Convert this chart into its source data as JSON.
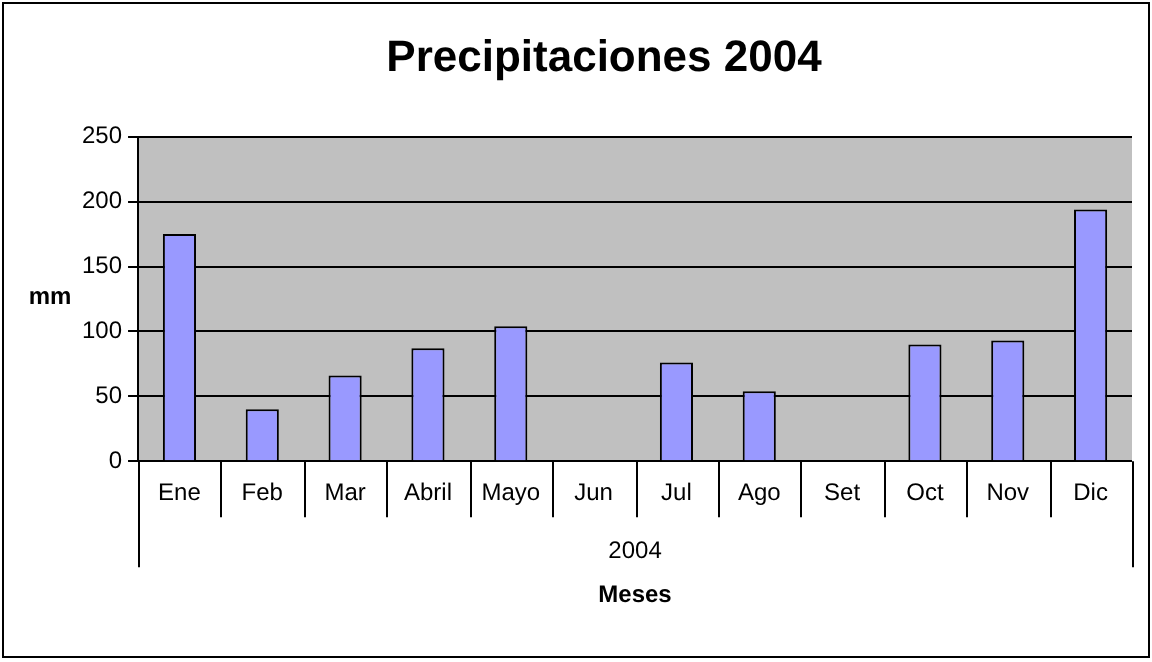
{
  "chart_data": {
    "type": "bar",
    "title": "Precipitaciones 2004",
    "xlabel": "Meses",
    "ylabel": "mm",
    "categories": [
      "Ene",
      "Feb",
      "Mar",
      "Abril",
      "Mayo",
      "Jun",
      "Jul",
      "Ago",
      "Set",
      "Oct",
      "Nov",
      "Dic"
    ],
    "values": [
      175,
      40,
      66,
      87,
      104,
      null,
      76,
      54,
      null,
      90,
      93,
      194
    ],
    "color": "#9999ff",
    "ylim": [
      0,
      250
    ],
    "yticks": [
      0,
      50,
      100,
      150,
      200,
      250
    ],
    "grid": "y",
    "legend": false,
    "annotations": [
      "2004"
    ]
  }
}
